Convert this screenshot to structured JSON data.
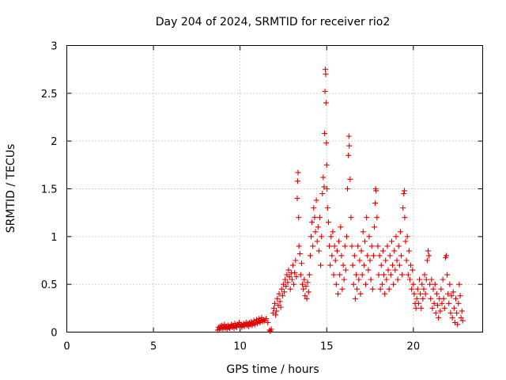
{
  "chart_data": {
    "type": "scatter",
    "title": "Day 204 of 2024, SRMTID for receiver rio2",
    "xlabel": "GPS time / hours",
    "ylabel": "SRMTID / TECUs",
    "xlim": [
      0,
      24
    ],
    "ylim": [
      0,
      3
    ],
    "xticks": [
      0,
      5,
      10,
      15,
      20
    ],
    "yticks": [
      0,
      0.5,
      1,
      1.5,
      2,
      2.5,
      3
    ],
    "xtick_labels": [
      "0",
      "5",
      "10",
      "15",
      "20"
    ],
    "ytick_labels": [
      "0",
      "0.5",
      "1",
      "1.5",
      "2",
      "2.5",
      "3"
    ],
    "grid": true,
    "marker": "+",
    "color": "#e00000",
    "series": [
      {
        "name": "rio2",
        "points": [
          [
            8.7,
            0.02
          ],
          [
            8.75,
            0.05
          ],
          [
            8.8,
            0.03
          ],
          [
            8.85,
            0.06
          ],
          [
            8.9,
            0.04
          ],
          [
            8.95,
            0.07
          ],
          [
            9.0,
            0.03
          ],
          [
            9.05,
            0.05
          ],
          [
            9.1,
            0.08
          ],
          [
            9.15,
            0.04
          ],
          [
            9.2,
            0.06
          ],
          [
            9.25,
            0.03
          ],
          [
            9.3,
            0.07
          ],
          [
            9.35,
            0.05
          ],
          [
            9.4,
            0.04
          ],
          [
            9.45,
            0.06
          ],
          [
            9.5,
            0.08
          ],
          [
            9.55,
            0.05
          ],
          [
            9.6,
            0.07
          ],
          [
            9.65,
            0.04
          ],
          [
            9.7,
            0.09
          ],
          [
            9.75,
            0.06
          ],
          [
            9.8,
            0.05
          ],
          [
            9.85,
            0.08
          ],
          [
            9.9,
            0.07
          ],
          [
            9.95,
            0.1
          ],
          [
            10.0,
            0.06
          ],
          [
            10.05,
            0.08
          ],
          [
            10.1,
            0.05
          ],
          [
            10.15,
            0.07
          ],
          [
            10.2,
            0.09
          ],
          [
            10.25,
            0.06
          ],
          [
            10.3,
            0.08
          ],
          [
            10.35,
            0.1
          ],
          [
            10.4,
            0.07
          ],
          [
            10.45,
            0.09
          ],
          [
            10.5,
            0.06
          ],
          [
            10.55,
            0.1
          ],
          [
            10.6,
            0.08
          ],
          [
            10.65,
            0.11
          ],
          [
            10.7,
            0.07
          ],
          [
            10.75,
            0.09
          ],
          [
            10.8,
            0.12
          ],
          [
            10.85,
            0.08
          ],
          [
            10.9,
            0.1
          ],
          [
            10.95,
            0.13
          ],
          [
            11.0,
            0.09
          ],
          [
            11.05,
            0.11
          ],
          [
            11.1,
            0.14
          ],
          [
            11.15,
            0.1
          ],
          [
            11.2,
            0.12
          ],
          [
            11.25,
            0.15
          ],
          [
            11.3,
            0.11
          ],
          [
            11.35,
            0.13
          ],
          [
            11.4,
            0.12
          ],
          [
            11.5,
            0.14
          ],
          [
            11.6,
            0.1
          ],
          [
            11.7,
            0.02
          ],
          [
            11.75,
            0.01
          ],
          [
            11.8,
            0.03
          ],
          [
            11.9,
            0.2
          ],
          [
            11.95,
            0.25
          ],
          [
            12.0,
            0.3
          ],
          [
            12.05,
            0.18
          ],
          [
            12.1,
            0.22
          ],
          [
            12.15,
            0.35
          ],
          [
            12.2,
            0.28
          ],
          [
            12.25,
            0.4
          ],
          [
            12.3,
            0.32
          ],
          [
            12.35,
            0.26
          ],
          [
            12.4,
            0.45
          ],
          [
            12.45,
            0.38
          ],
          [
            12.5,
            0.5
          ],
          [
            12.55,
            0.42
          ],
          [
            12.6,
            0.55
          ],
          [
            12.65,
            0.48
          ],
          [
            12.7,
            0.6
          ],
          [
            12.75,
            0.52
          ],
          [
            12.8,
            0.65
          ],
          [
            12.85,
            0.58
          ],
          [
            12.9,
            0.45
          ],
          [
            12.95,
            0.62
          ],
          [
            13.0,
            0.55
          ],
          [
            13.05,
            0.7
          ],
          [
            13.1,
            0.5
          ],
          [
            13.15,
            0.62
          ],
          [
            13.2,
            0.75
          ],
          [
            13.25,
            0.58
          ],
          [
            13.3,
            1.4
          ],
          [
            13.32,
            1.58
          ],
          [
            13.35,
            1.67
          ],
          [
            13.38,
            1.2
          ],
          [
            13.4,
            0.9
          ],
          [
            13.45,
            0.82
          ],
          [
            13.5,
            0.6
          ],
          [
            13.55,
            0.72
          ],
          [
            13.6,
            0.5
          ],
          [
            13.65,
            0.45
          ],
          [
            13.7,
            0.55
          ],
          [
            13.75,
            0.38
          ],
          [
            13.8,
            0.48
          ],
          [
            13.85,
            0.35
          ],
          [
            13.9,
            0.52
          ],
          [
            13.95,
            0.42
          ],
          [
            14.0,
            0.6
          ],
          [
            14.05,
            0.8
          ],
          [
            14.1,
            1.0
          ],
          [
            14.15,
            1.15
          ],
          [
            14.2,
            0.9
          ],
          [
            14.25,
            1.3
          ],
          [
            14.3,
            1.2
          ],
          [
            14.35,
            1.05
          ],
          [
            14.4,
            1.38
          ],
          [
            14.45,
            0.95
          ],
          [
            14.5,
            1.1
          ],
          [
            14.55,
            0.85
          ],
          [
            14.6,
            1.2
          ],
          [
            14.65,
            0.7
          ],
          [
            14.7,
            1.0
          ],
          [
            14.75,
            1.45
          ],
          [
            14.8,
            1.62
          ],
          [
            14.85,
            1.52
          ],
          [
            14.88,
            2.08
          ],
          [
            14.9,
            2.52
          ],
          [
            14.92,
            2.75
          ],
          [
            14.94,
            2.7
          ],
          [
            14.96,
            2.4
          ],
          [
            14.98,
            1.98
          ],
          [
            15.0,
            1.75
          ],
          [
            15.02,
            1.5
          ],
          [
            15.05,
            1.3
          ],
          [
            15.1,
            1.15
          ],
          [
            15.15,
            0.9
          ],
          [
            15.2,
            0.7
          ],
          [
            15.25,
            1.0
          ],
          [
            15.3,
            0.8
          ],
          [
            15.35,
            1.05
          ],
          [
            15.4,
            0.6
          ],
          [
            15.45,
            0.9
          ],
          [
            15.5,
            0.75
          ],
          [
            15.55,
            0.5
          ],
          [
            15.6,
            0.85
          ],
          [
            15.65,
            0.4
          ],
          [
            15.7,
            0.95
          ],
          [
            15.75,
            0.6
          ],
          [
            15.8,
            1.1
          ],
          [
            15.85,
            0.8
          ],
          [
            15.9,
            0.45
          ],
          [
            15.95,
            0.7
          ],
          [
            16.0,
            0.55
          ],
          [
            16.05,
            0.9
          ],
          [
            16.1,
            0.65
          ],
          [
            16.15,
            1.0
          ],
          [
            16.2,
            1.5
          ],
          [
            16.25,
            1.85
          ],
          [
            16.28,
            2.05
          ],
          [
            16.3,
            1.95
          ],
          [
            16.35,
            1.6
          ],
          [
            16.4,
            1.2
          ],
          [
            16.45,
            0.9
          ],
          [
            16.5,
            0.7
          ],
          [
            16.55,
            0.5
          ],
          [
            16.6,
            0.8
          ],
          [
            16.65,
            0.35
          ],
          [
            16.7,
            0.6
          ],
          [
            16.75,
            0.45
          ],
          [
            16.8,
            0.9
          ],
          [
            16.85,
            0.55
          ],
          [
            16.9,
            0.75
          ],
          [
            16.95,
            0.4
          ],
          [
            17.0,
            0.85
          ],
          [
            17.05,
            0.6
          ],
          [
            17.1,
            1.05
          ],
          [
            17.15,
            0.7
          ],
          [
            17.2,
            0.95
          ],
          [
            17.25,
            0.5
          ],
          [
            17.3,
            1.2
          ],
          [
            17.35,
            0.8
          ],
          [
            17.4,
            0.65
          ],
          [
            17.45,
            1.0
          ],
          [
            17.5,
            0.75
          ],
          [
            17.55,
            0.55
          ],
          [
            17.6,
            0.9
          ],
          [
            17.65,
            0.45
          ],
          [
            17.7,
            0.8
          ],
          [
            17.75,
            1.1
          ],
          [
            17.8,
            1.35
          ],
          [
            17.82,
            1.5
          ],
          [
            17.85,
            1.48
          ],
          [
            17.9,
            1.2
          ],
          [
            17.95,
            0.9
          ],
          [
            18.0,
            0.6
          ],
          [
            18.05,
            0.8
          ],
          [
            18.1,
            0.45
          ],
          [
            18.15,
            0.7
          ],
          [
            18.2,
            0.5
          ],
          [
            18.25,
            0.85
          ],
          [
            18.3,
            0.6
          ],
          [
            18.35,
            0.4
          ],
          [
            18.4,
            0.75
          ],
          [
            18.45,
            0.55
          ],
          [
            18.5,
            0.9
          ],
          [
            18.55,
            0.65
          ],
          [
            18.6,
            0.45
          ],
          [
            18.65,
            0.8
          ],
          [
            18.7,
            0.6
          ],
          [
            18.75,
            0.95
          ],
          [
            18.8,
            0.7
          ],
          [
            18.85,
            0.5
          ],
          [
            18.9,
            0.85
          ],
          [
            18.95,
            0.65
          ],
          [
            19.0,
            1.0
          ],
          [
            19.05,
            0.75
          ],
          [
            19.1,
            0.55
          ],
          [
            19.15,
            0.9
          ],
          [
            19.2,
            0.7
          ],
          [
            19.25,
            1.05
          ],
          [
            19.3,
            0.8
          ],
          [
            19.35,
            0.6
          ],
          [
            19.4,
            1.3
          ],
          [
            19.45,
            1.45
          ],
          [
            19.48,
            1.48
          ],
          [
            19.5,
            1.2
          ],
          [
            19.55,
            0.95
          ],
          [
            19.6,
            0.75
          ],
          [
            19.65,
            1.0
          ],
          [
            19.7,
            0.6
          ],
          [
            19.75,
            0.85
          ],
          [
            19.8,
            0.55
          ],
          [
            19.85,
            0.7
          ],
          [
            19.9,
            0.45
          ],
          [
            19.95,
            0.65
          ],
          [
            20.0,
            0.5
          ],
          [
            20.05,
            0.4
          ],
          [
            20.1,
            0.3
          ],
          [
            20.15,
            0.25
          ],
          [
            20.2,
            0.35
          ],
          [
            20.25,
            0.45
          ],
          [
            20.3,
            0.3
          ],
          [
            20.35,
            0.55
          ],
          [
            20.4,
            0.4
          ],
          [
            20.45,
            0.25
          ],
          [
            20.5,
            0.5
          ],
          [
            20.55,
            0.35
          ],
          [
            20.6,
            0.45
          ],
          [
            20.65,
            0.6
          ],
          [
            20.7,
            0.4
          ],
          [
            20.75,
            0.55
          ],
          [
            20.8,
            0.75
          ],
          [
            20.85,
            0.85
          ],
          [
            20.9,
            0.8
          ],
          [
            20.95,
            0.5
          ],
          [
            21.0,
            0.35
          ],
          [
            21.05,
            0.55
          ],
          [
            21.1,
            0.25
          ],
          [
            21.15,
            0.45
          ],
          [
            21.2,
            0.3
          ],
          [
            21.25,
            0.5
          ],
          [
            21.3,
            0.2
          ],
          [
            21.35,
            0.4
          ],
          [
            21.4,
            0.28
          ],
          [
            21.45,
            0.15
          ],
          [
            21.5,
            0.35
          ],
          [
            21.55,
            0.22
          ],
          [
            21.6,
            0.45
          ],
          [
            21.65,
            0.3
          ],
          [
            21.7,
            0.55
          ],
          [
            21.75,
            0.35
          ],
          [
            21.8,
            0.25
          ],
          [
            21.85,
            0.78
          ],
          [
            21.9,
            0.8
          ],
          [
            21.95,
            0.6
          ],
          [
            22.0,
            0.4
          ],
          [
            22.05,
            0.3
          ],
          [
            22.1,
            0.5
          ],
          [
            22.15,
            0.2
          ],
          [
            22.2,
            0.38
          ],
          [
            22.25,
            0.15
          ],
          [
            22.3,
            0.42
          ],
          [
            22.35,
            0.25
          ],
          [
            22.4,
            0.1
          ],
          [
            22.45,
            0.35
          ],
          [
            22.5,
            0.2
          ],
          [
            22.55,
            0.08
          ],
          [
            22.6,
            0.3
          ],
          [
            22.65,
            0.5
          ],
          [
            22.7,
            0.38
          ],
          [
            22.75,
            0.15
          ],
          [
            22.8,
            0.22
          ],
          [
            22.85,
            0.12
          ]
        ]
      }
    ]
  }
}
